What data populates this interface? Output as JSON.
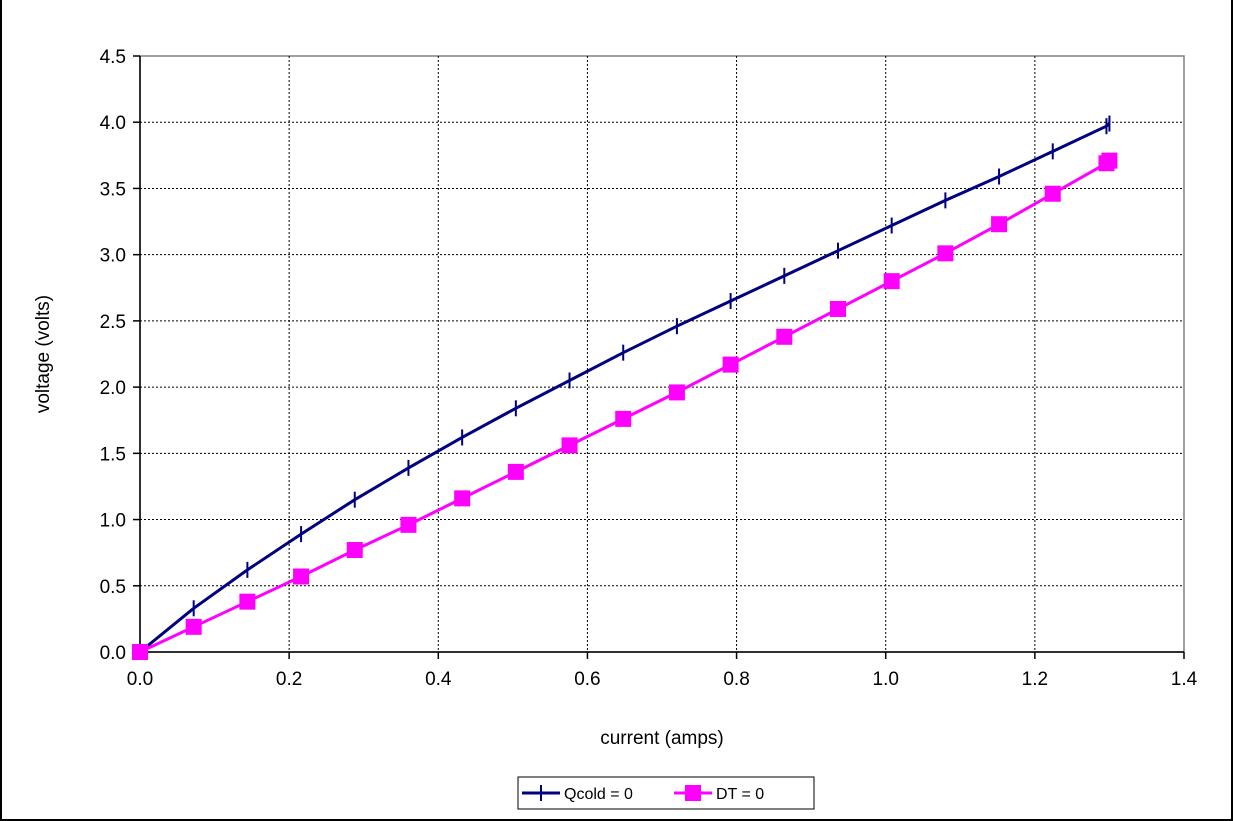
{
  "chart_data": {
    "type": "line",
    "title": "",
    "xlabel": "current (amps)",
    "ylabel": "voltage (volts)",
    "xlim": [
      0,
      1.4
    ],
    "ylim": [
      0,
      4.5
    ],
    "x_ticks": [
      "0.0",
      "0.2",
      "0.4",
      "0.6",
      "0.8",
      "1.0",
      "1.2",
      "1.4"
    ],
    "y_ticks": [
      "0.0",
      "0.5",
      "1.0",
      "1.5",
      "2.0",
      "2.5",
      "3.0",
      "3.5",
      "4.0",
      "4.5"
    ],
    "grid": true,
    "legend_position": "bottom-center",
    "series": [
      {
        "name": "Qcold = 0",
        "color": "#000080",
        "marker": "vertical-tick",
        "x": [
          0.0,
          0.072,
          0.144,
          0.216,
          0.288,
          0.36,
          0.432,
          0.504,
          0.576,
          0.648,
          0.72,
          0.792,
          0.864,
          0.936,
          1.008,
          1.08,
          1.152,
          1.224,
          1.296,
          1.3
        ],
        "y": [
          0.0,
          0.33,
          0.62,
          0.89,
          1.15,
          1.39,
          1.62,
          1.84,
          2.05,
          2.26,
          2.46,
          2.65,
          2.84,
          3.03,
          3.22,
          3.41,
          3.59,
          3.78,
          3.97,
          3.99
        ]
      },
      {
        "name": "DT = 0",
        "color": "#FF00FF",
        "marker": "square",
        "x": [
          0.0,
          0.072,
          0.144,
          0.216,
          0.288,
          0.36,
          0.432,
          0.504,
          0.576,
          0.648,
          0.72,
          0.792,
          0.864,
          0.936,
          1.008,
          1.08,
          1.152,
          1.224,
          1.296,
          1.3
        ],
        "y": [
          0.0,
          0.19,
          0.38,
          0.57,
          0.77,
          0.96,
          1.16,
          1.36,
          1.56,
          1.76,
          1.96,
          2.17,
          2.38,
          2.59,
          2.8,
          3.01,
          3.23,
          3.46,
          3.69,
          3.71
        ]
      }
    ]
  }
}
